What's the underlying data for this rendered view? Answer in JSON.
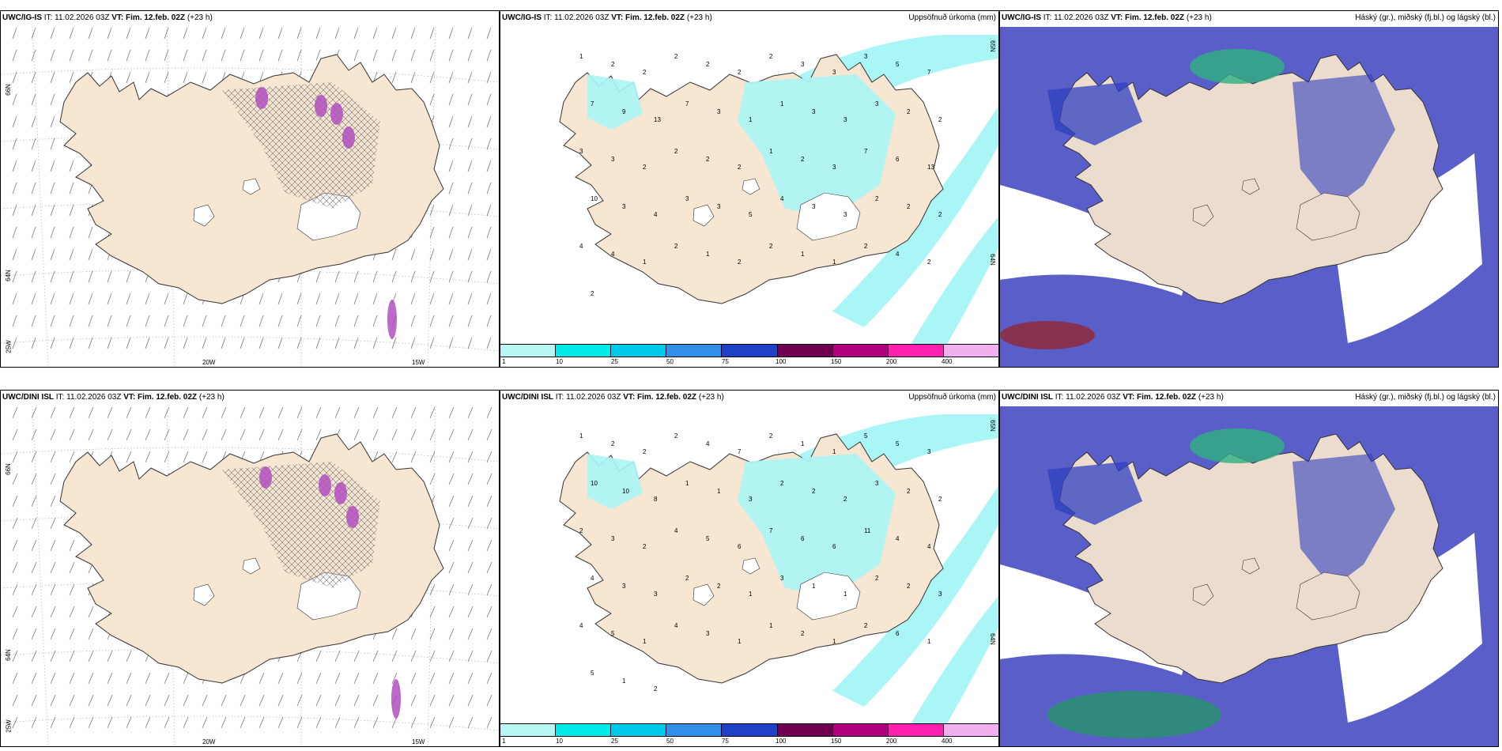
{
  "colors": {
    "land": "#f6e6d2",
    "land_cloud": "#ecdccd",
    "precip": "#aaf5f5",
    "cloud_low": "#5a5ec9",
    "cloud_mid": "#3040c0",
    "coast": "#333333",
    "hatch": "#777777",
    "magenta": "#b04fc0",
    "white": "#ffffff"
  },
  "colorbar": {
    "ticks": [
      "1",
      "10",
      "25",
      "50",
      "75",
      "100",
      "150",
      "200",
      "400"
    ],
    "colors": [
      "#b8f6f6",
      "#00eaea",
      "#00c8e8",
      "#3090e8",
      "#2040c8",
      "#700050",
      "#b00080",
      "#ff20b0",
      "#f2b0f0"
    ]
  },
  "rows": [
    {
      "model": "UWC/IG-IS",
      "it_label": "IT:",
      "it_value": "11.02.2026 03Z",
      "vt_label": "VT:",
      "vt_value": "Fim. 12.feb. 02Z",
      "lead": "(+23 h)",
      "precip_title": "Uppsöfnuð úrkoma (mm)",
      "cloud_title": "Háský (gr.), miðský (fj.bl.) og lágský (bl.)",
      "lon_labels": [
        "20W",
        "15W"
      ],
      "lat_labels": [
        "66N",
        "64N",
        "25W",
        "65N",
        "64N"
      ],
      "precip_numbers": [
        "1",
        "2",
        "2",
        "2",
        "2",
        "2",
        "2",
        "3",
        "3",
        "3",
        "5",
        "7",
        "7",
        "9",
        "13",
        "7",
        "3",
        "1",
        "1",
        "3",
        "3",
        "3",
        "2",
        "2",
        "3",
        "3",
        "2",
        "2",
        "2",
        "2",
        "1",
        "2",
        "3",
        "7",
        "6",
        "13",
        "10",
        "3",
        "4",
        "3",
        "3",
        "5",
        "4",
        "3",
        "3",
        "2",
        "2",
        "2",
        "4",
        "4",
        "1",
        "2",
        "1",
        "2",
        "2",
        "1",
        "1",
        "2",
        "4",
        "2",
        "2"
      ]
    },
    {
      "model": "UWC/DINI ISL",
      "it_label": "IT:",
      "it_value": "11.02.2026 03Z",
      "vt_label": "VT:",
      "vt_value": "Fim. 12.feb. 02Z",
      "lead": "(+23 h)",
      "precip_title": "Uppsöfnuð úrkoma (mm)",
      "cloud_title": "Háský (gr.), miðský (fj.bl.) og lágský (bl.)",
      "lon_labels": [
        "20W",
        "15W"
      ],
      "lat_labels": [
        "66N",
        "64N",
        "25W",
        "65N",
        "64N"
      ],
      "precip_numbers": [
        "1",
        "2",
        "2",
        "2",
        "4",
        "7",
        "2",
        "1",
        "1",
        "5",
        "5",
        "3",
        "10",
        "10",
        "8",
        "1",
        "1",
        "3",
        "2",
        "2",
        "2",
        "3",
        "2",
        "2",
        "2",
        "3",
        "2",
        "4",
        "5",
        "6",
        "7",
        "6",
        "6",
        "11",
        "4",
        "4",
        "4",
        "3",
        "3",
        "2",
        "2",
        "1",
        "3",
        "1",
        "1",
        "2",
        "2",
        "3",
        "4",
        "5",
        "1",
        "4",
        "3",
        "1",
        "1",
        "2",
        "1",
        "2",
        "6",
        "1",
        "5",
        "1",
        "2"
      ]
    }
  ]
}
